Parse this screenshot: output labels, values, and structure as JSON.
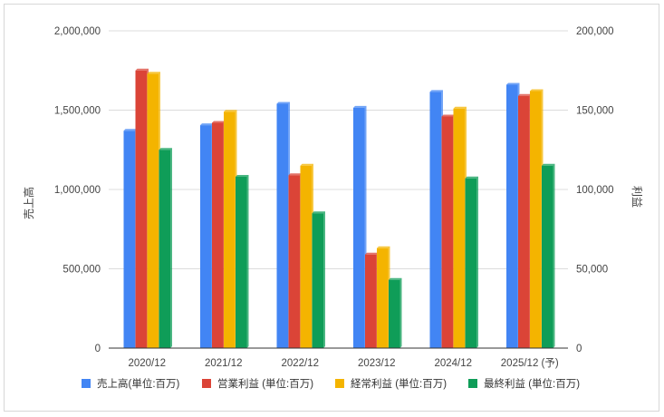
{
  "chart_data": {
    "type": "bar",
    "categories": [
      "2020/12",
      "2021/12",
      "2022/12",
      "2023/12",
      "2024/12",
      "2025/12 (予)"
    ],
    "series": [
      {
        "name": "売上高(単位:百万)",
        "axis": "left",
        "color": "#4285f4",
        "values": [
          1370000,
          1405000,
          1540000,
          1515000,
          1615000,
          1660000
        ]
      },
      {
        "name": "営業利益 (単位:百万)",
        "axis": "right",
        "color": "#db4437",
        "values": [
          175000,
          142000,
          109000,
          59000,
          146000,
          159000
        ]
      },
      {
        "name": "経常利益 (単位:百万)",
        "axis": "right",
        "color": "#f4b400",
        "values": [
          173000,
          149000,
          115000,
          63000,
          151000,
          162000
        ]
      },
      {
        "name": "最終利益 (単位:百万)",
        "axis": "right",
        "color": "#0f9d58",
        "values": [
          125000,
          108000,
          85000,
          43000,
          107000,
          115000
        ]
      }
    ],
    "y_left": {
      "label": "売上高",
      "lim": [
        0,
        2000000
      ],
      "ticks": [
        "0",
        "500,000",
        "1,000,000",
        "1,500,000",
        "2,000,000"
      ]
    },
    "y_right": {
      "label": "利益",
      "lim": [
        0,
        200000
      ],
      "ticks": [
        "0",
        "50,000",
        "100,000",
        "150,000",
        "200,000"
      ]
    },
    "grid": true,
    "legend": "bottom"
  }
}
